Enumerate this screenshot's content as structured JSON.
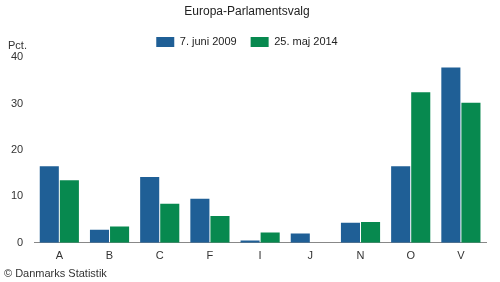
{
  "chart_data": {
    "type": "bar",
    "title": "Europa-Parlamentsvalg",
    "ylabel": "Pct.",
    "source": "© Danmarks Statistik",
    "categories": [
      "A",
      "B",
      "C",
      "F",
      "I",
      "J",
      "N",
      "O",
      "V"
    ],
    "series": [
      {
        "name": "7. juni 2009",
        "color": "#1f5f96",
        "values": [
          16.5,
          2.8,
          14.2,
          9.5,
          0.5,
          2.0,
          4.3,
          16.5,
          37.8
        ]
      },
      {
        "name": "25. maj 2014",
        "color": "#07894f",
        "values": [
          13.5,
          3.5,
          8.4,
          5.8,
          2.2,
          null,
          4.5,
          32.5,
          30.2
        ]
      }
    ],
    "ylim": [
      0,
      40
    ],
    "yticks": [
      0,
      10,
      20,
      30,
      40
    ],
    "grid": false,
    "legend": "top"
  }
}
